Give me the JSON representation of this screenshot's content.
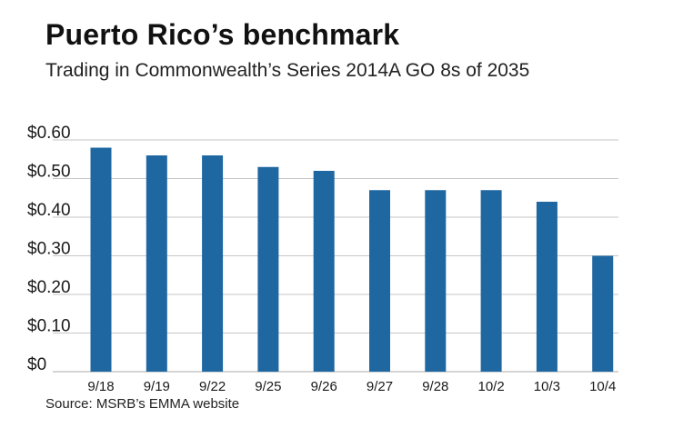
{
  "chart_data": {
    "type": "bar",
    "title": "Puerto Rico’s benchmark",
    "subtitle": "Trading in Commonwealth’s Series 2014A GO 8s of 2035",
    "categories": [
      "9/18",
      "9/19",
      "9/22",
      "9/25",
      "9/26",
      "9/27",
      "9/28",
      "10/2",
      "10/3",
      "10/4"
    ],
    "values": [
      0.58,
      0.56,
      0.56,
      0.53,
      0.52,
      0.47,
      0.47,
      0.47,
      0.44,
      0.3
    ],
    "ylim": [
      0,
      0.6
    ],
    "yticks": [
      0,
      0.1,
      0.2,
      0.3,
      0.4,
      0.5,
      0.6
    ],
    "ytick_labels": [
      "$0",
      "$0.10",
      "$0.20",
      "$0.30",
      "$0.40",
      "$0.50",
      "$0.60"
    ],
    "xlabel": "",
    "ylabel": "",
    "grid": true,
    "bar_color": "#1f67a1",
    "grid_color": "#c6c6c6",
    "source": "Source: MSRB’s EMMA website"
  }
}
